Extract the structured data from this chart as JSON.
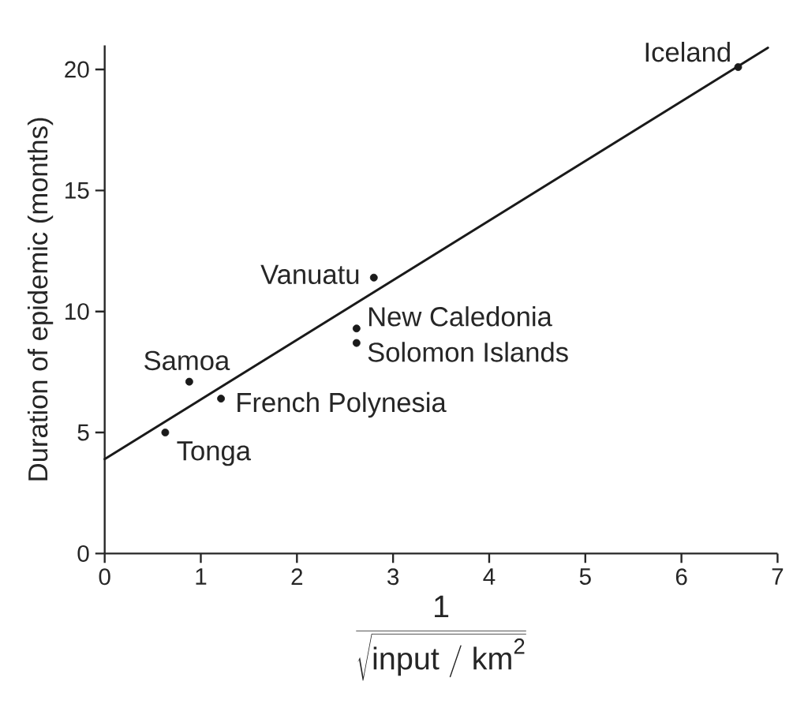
{
  "chart_data": {
    "type": "scatter",
    "xlabel": "\\frac{\\mathrm{1}}{\\sqrt{\\mathrm{input\\ /\\ km}^{\\mathrm{2}}}}",
    "ylabel": "Duration of epidemic (months)",
    "series": [
      {
        "color": "#1a1a1a",
        "marker": "circle",
        "x": [
          0.63,
          0.88,
          1.21,
          2.62,
          2.62,
          2.8,
          6.59
        ],
        "values": [
          5.0,
          7.1,
          6.4,
          9.3,
          8.7,
          11.4,
          20.1
        ]
      },
      {
        "type": "line",
        "color": "#1a1a1a",
        "marker": "none",
        "line_style": "solid",
        "x": [
          0,
          6.9
        ],
        "values": [
          3.9,
          20.9
        ]
      }
    ],
    "annotations": [
      {
        "text": "Tonga",
        "x": 0.63,
        "y": 5.0
      },
      {
        "text": "Samoa",
        "x": 0.88,
        "y": 7.1
      },
      {
        "text": "French Polynesia",
        "x": 1.21,
        "y": 6.4
      },
      {
        "text": "New Caledonia",
        "x": 2.62,
        "y": 9.3
      },
      {
        "text": "Solomon Islands",
        "x": 2.62,
        "y": 8.7
      },
      {
        "text": "Vanuatu",
        "x": 2.8,
        "y": 11.4
      },
      {
        "text": "Iceland",
        "x": 6.59,
        "y": 20.1
      }
    ],
    "xlim": [
      0,
      7
    ],
    "ylim": [
      0,
      21
    ],
    "xticks": [
      0,
      1,
      2,
      3,
      4,
      5,
      6,
      7
    ],
    "yticks": [
      0,
      5,
      10,
      15,
      20
    ]
  }
}
